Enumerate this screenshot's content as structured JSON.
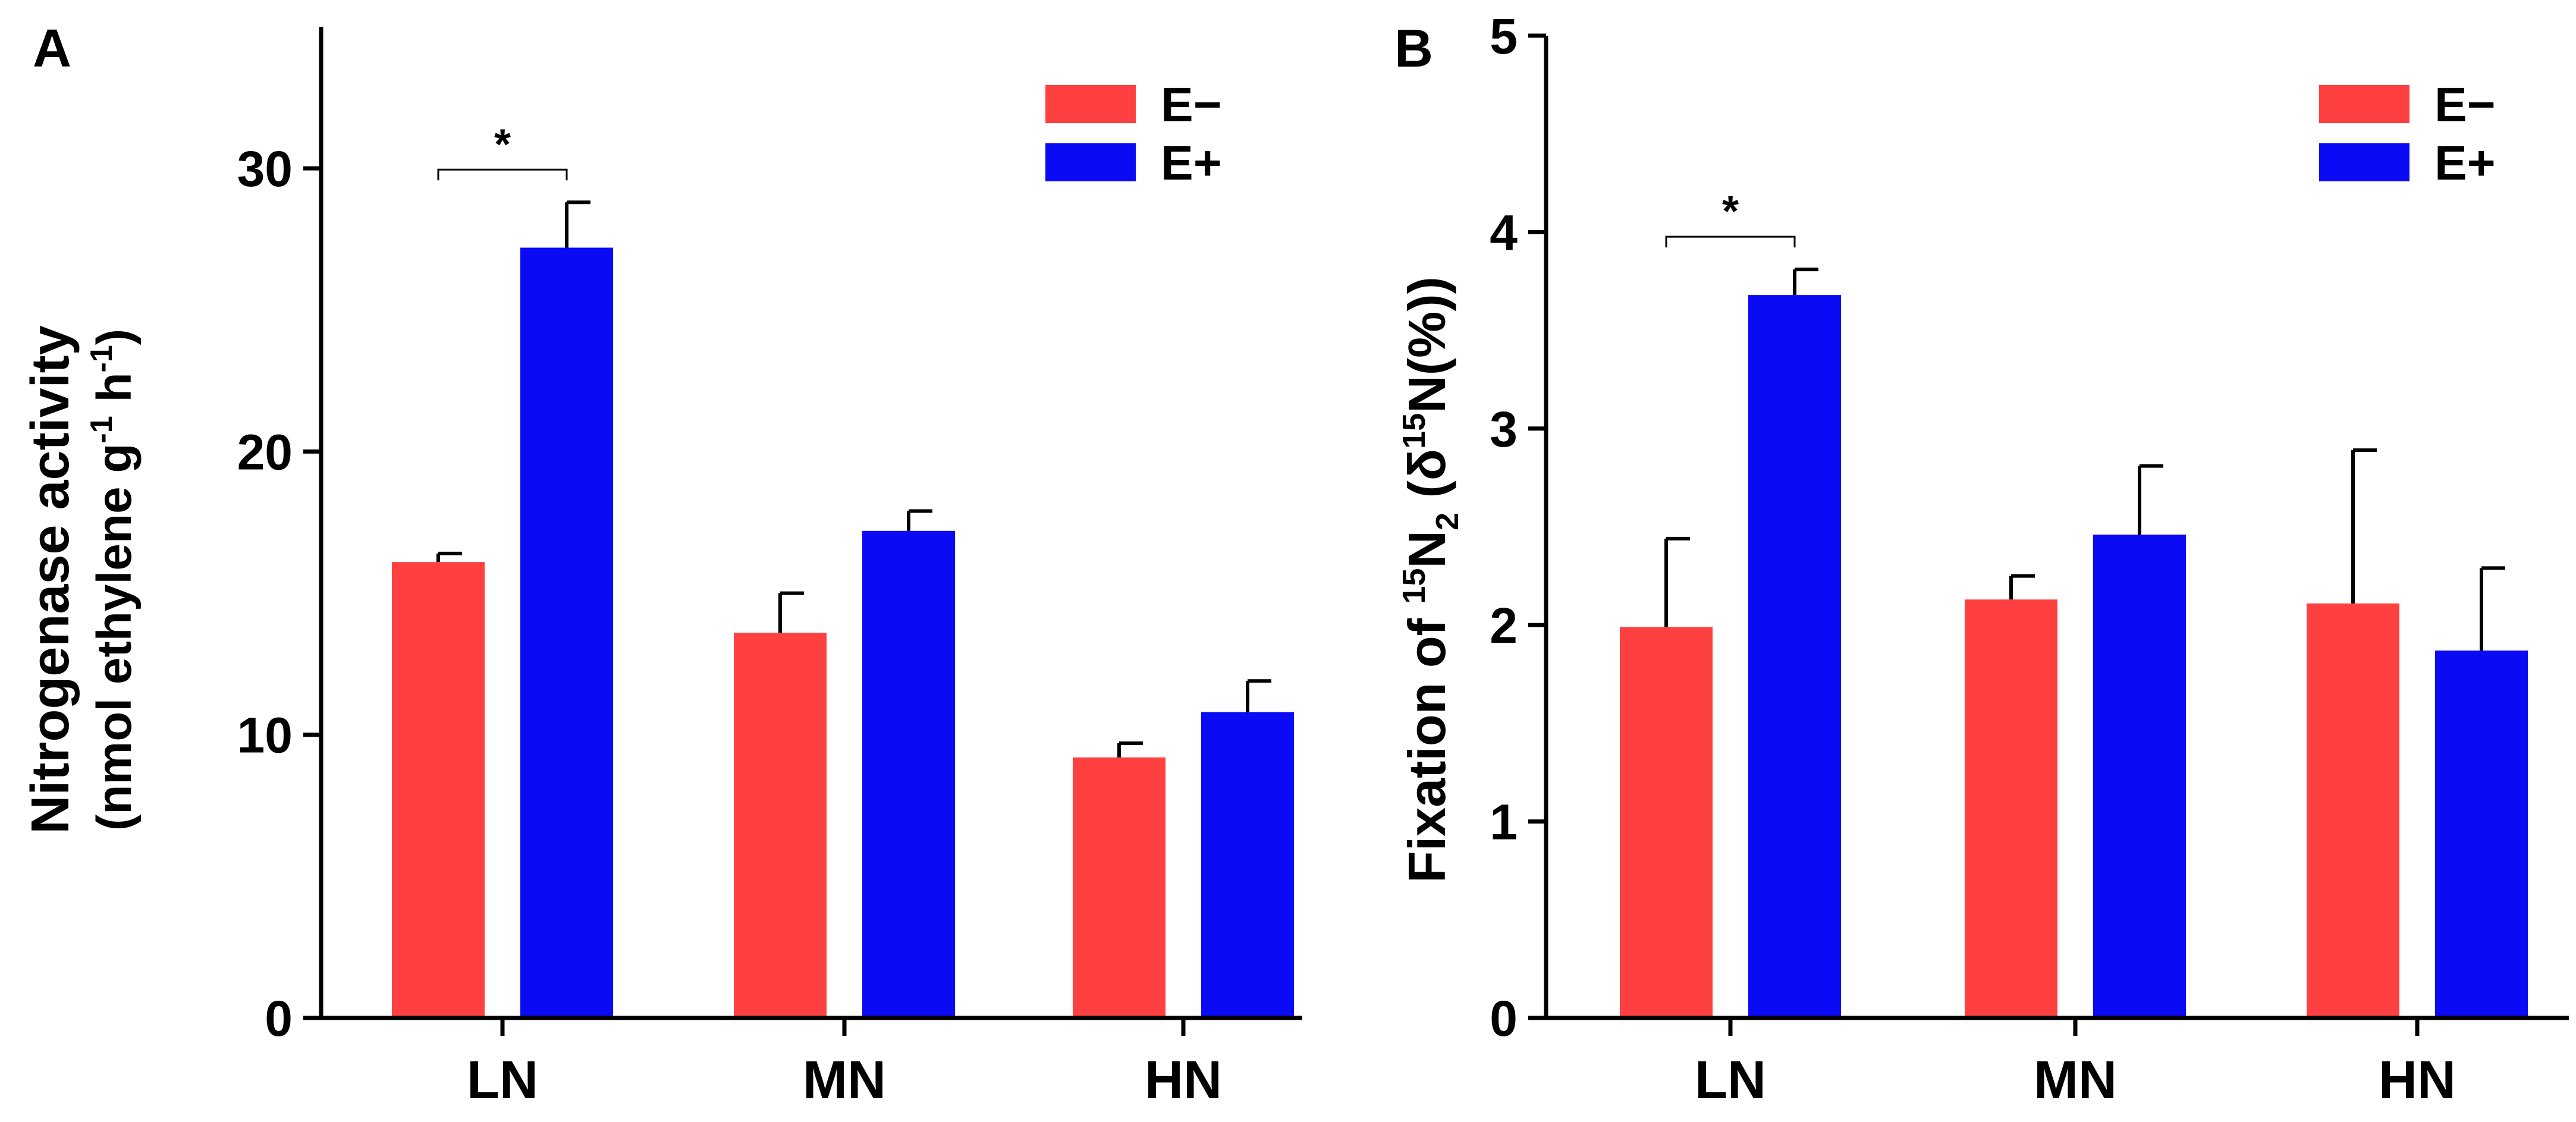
{
  "chart_data": [
    {
      "panel_label": "A",
      "type": "bar",
      "ylabel_line1": "Nitrogenase activity",
      "ylabel_line2_pre": "(nmol ethylene g",
      "ylabel_sup1": "-1",
      "ylabel_mid": " h",
      "ylabel_sup2": "-1",
      "ylabel_post": ")",
      "ylim": [
        0,
        35
      ],
      "yticks": [
        0,
        10,
        20,
        30
      ],
      "categories": [
        "LN",
        "MN",
        "HN"
      ],
      "series": [
        {
          "name": "E−",
          "color": "#ff4040",
          "values": [
            16.1,
            13.6,
            9.2
          ],
          "errors": [
            0.3,
            1.4,
            0.5
          ]
        },
        {
          "name": "E+",
          "color": "#0a0af5",
          "values": [
            27.2,
            17.2,
            10.8
          ],
          "errors": [
            1.6,
            0.7,
            1.1
          ]
        }
      ],
      "significance": [
        {
          "category": "LN",
          "label": "*"
        }
      ],
      "legend_position": "top-right",
      "grid": false
    },
    {
      "panel_label": "B",
      "type": "bar",
      "ylabel_pre": "Fixation of ",
      "ylabel_sup": "15",
      "ylabel_n": "N",
      "ylabel_sub": "2",
      "ylabel_mid": " (δ",
      "ylabel_sup2": "15",
      "ylabel_post": "N(%))",
      "ylim": [
        0,
        5
      ],
      "yticks": [
        0,
        1,
        2,
        3,
        4,
        5
      ],
      "categories": [
        "LN",
        "MN",
        "HN"
      ],
      "series": [
        {
          "name": "E−",
          "color": "#ff4040",
          "values": [
            1.99,
            2.13,
            2.11
          ],
          "errors": [
            0.45,
            0.12,
            0.78
          ]
        },
        {
          "name": "E+",
          "color": "#0a0af5",
          "values": [
            3.68,
            2.46,
            1.87
          ],
          "errors": [
            0.13,
            0.35,
            0.42
          ]
        }
      ],
      "significance": [
        {
          "category": "LN",
          "label": "*"
        }
      ],
      "legend_position": "top-right",
      "grid": false
    }
  ]
}
